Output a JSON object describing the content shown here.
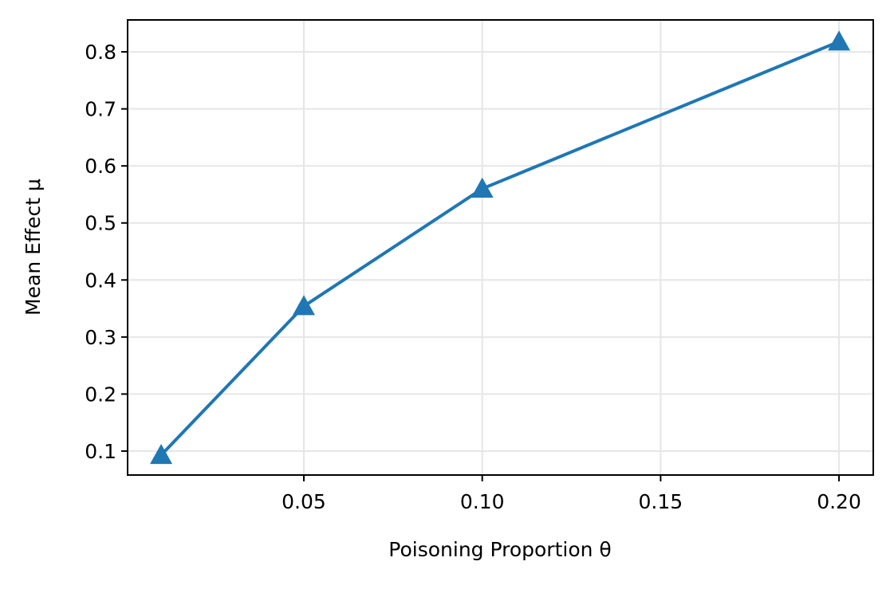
{
  "chart_data": {
    "type": "line",
    "xlabel": "Poisoning Proportion θ",
    "ylabel": "Mean Effect μ",
    "x": [
      0.01,
      0.05,
      0.1,
      0.2
    ],
    "series": [
      {
        "color": "#1f77b4",
        "marker": "triangle",
        "values": [
          0.093,
          0.354,
          0.56,
          0.818
        ]
      }
    ],
    "xlim": [
      0.0006,
      0.2096
    ],
    "ylim": [
      0.058,
      0.856
    ],
    "xticks": [
      0.05,
      {
        "value": 0.1,
        "label": "0.10"
      },
      0.15,
      {
        "value": 0.2,
        "label": "0.20"
      }
    ],
    "yticks": [
      0.1,
      0.2,
      0.3,
      0.4,
      0.5,
      0.6,
      0.7,
      0.8
    ],
    "grid": true
  }
}
